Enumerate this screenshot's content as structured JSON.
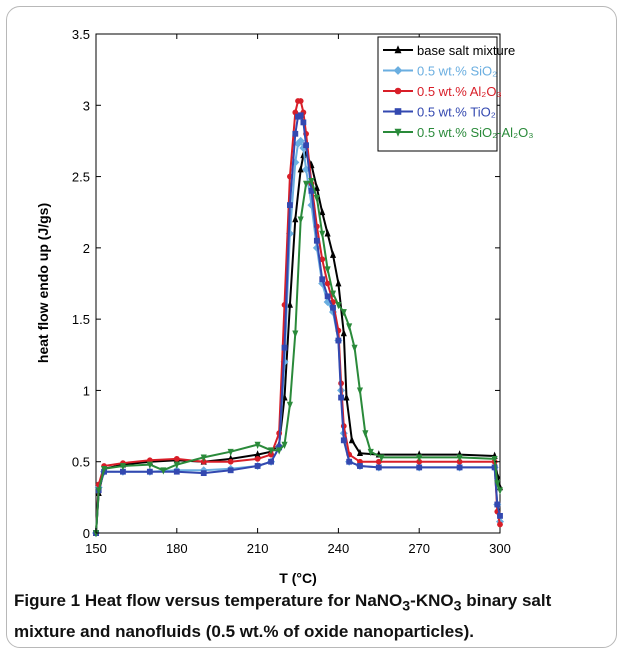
{
  "caption": {
    "label": "Figure 1",
    "text_a": " Heat flow versus temperature for NaNO",
    "sub1": "3",
    "text_b": "-KNO",
    "sub2": "3",
    "text_c": " binary salt mixture and nanofluids (0.5 wt.% of oxide nanoparticles)."
  },
  "chart_data": {
    "type": "line",
    "xlabel": "T (°C)",
    "ylabel": "heat flow endo up (J/gs)",
    "xlim": [
      150,
      300
    ],
    "ylim": [
      0,
      3.5
    ],
    "xticks": [
      150,
      180,
      210,
      240,
      270,
      300
    ],
    "yticks": [
      0,
      0.5,
      1,
      1.5,
      2,
      2.5,
      3,
      3.5
    ],
    "grid": false,
    "legend_position": "top-right",
    "series": [
      {
        "name": "base salt mixture",
        "color": "#000000",
        "marker": "triangle-up",
        "x": [
          150,
          151,
          153,
          160,
          170,
          180,
          190,
          200,
          210,
          215,
          218,
          220,
          222,
          224,
          226,
          227,
          228,
          230,
          232,
          234,
          236,
          238,
          240,
          242,
          243,
          245,
          248,
          255,
          270,
          285,
          298,
          299,
          300
        ],
        "y": [
          0,
          0.28,
          0.45,
          0.48,
          0.5,
          0.51,
          0.5,
          0.52,
          0.55,
          0.57,
          0.62,
          0.95,
          1.6,
          2.2,
          2.55,
          2.65,
          2.66,
          2.58,
          2.42,
          2.25,
          2.1,
          1.95,
          1.75,
          1.4,
          0.95,
          0.65,
          0.56,
          0.55,
          0.55,
          0.55,
          0.54,
          0.4,
          0.32
        ]
      },
      {
        "name": "0.5 wt.% SiO₂",
        "color": "#6aaee0",
        "marker": "diamond",
        "x": [
          150,
          151,
          153,
          160,
          170,
          180,
          190,
          200,
          210,
          215,
          218,
          220,
          222,
          224,
          225,
          226,
          227,
          228,
          230,
          232,
          234,
          236,
          238,
          240,
          241,
          242,
          244,
          248,
          255,
          270,
          285,
          298,
          299,
          300
        ],
        "y": [
          0,
          0.32,
          0.43,
          0.43,
          0.43,
          0.44,
          0.44,
          0.45,
          0.47,
          0.5,
          0.6,
          1.2,
          2.1,
          2.6,
          2.73,
          2.75,
          2.7,
          2.55,
          2.3,
          2.0,
          1.75,
          1.62,
          1.55,
          1.35,
          1.0,
          0.7,
          0.5,
          0.47,
          0.46,
          0.46,
          0.46,
          0.46,
          0.2,
          0.08
        ]
      },
      {
        "name": "0.5 wt.% Al₂O₃",
        "color": "#d81e28",
        "marker": "circle",
        "x": [
          150,
          151,
          153,
          160,
          170,
          180,
          190,
          200,
          210,
          215,
          218,
          220,
          222,
          224,
          225,
          226,
          227,
          228,
          230,
          232,
          234,
          236,
          238,
          240,
          241,
          242,
          244,
          248,
          255,
          270,
          285,
          298,
          299,
          300
        ],
        "y": [
          0,
          0.34,
          0.47,
          0.49,
          0.51,
          0.52,
          0.5,
          0.5,
          0.52,
          0.55,
          0.7,
          1.6,
          2.5,
          2.95,
          3.03,
          3.03,
          2.95,
          2.8,
          2.45,
          2.15,
          1.92,
          1.75,
          1.62,
          1.42,
          1.05,
          0.75,
          0.55,
          0.5,
          0.5,
          0.5,
          0.5,
          0.5,
          0.15,
          0.06
        ]
      },
      {
        "name": "0.5 wt.% TiO₂",
        "color": "#3348b0",
        "marker": "square",
        "x": [
          150,
          151,
          153,
          160,
          170,
          180,
          190,
          200,
          210,
          215,
          218,
          220,
          222,
          224,
          225,
          226,
          227,
          228,
          230,
          232,
          234,
          236,
          238,
          240,
          241,
          242,
          244,
          248,
          255,
          270,
          285,
          298,
          299,
          300
        ],
        "y": [
          0,
          0.3,
          0.43,
          0.43,
          0.43,
          0.43,
          0.42,
          0.44,
          0.47,
          0.5,
          0.6,
          1.3,
          2.3,
          2.8,
          2.92,
          2.93,
          2.88,
          2.72,
          2.4,
          2.05,
          1.78,
          1.66,
          1.58,
          1.35,
          0.95,
          0.65,
          0.5,
          0.47,
          0.46,
          0.46,
          0.46,
          0.46,
          0.2,
          0.12
        ]
      },
      {
        "name": "0.5 wt.% SiO₂-Al₂O₃",
        "color": "#2a8a3a",
        "marker": "triangle-down",
        "x": [
          150,
          151,
          153,
          160,
          170,
          175,
          180,
          190,
          200,
          210,
          215,
          218,
          220,
          222,
          224,
          226,
          228,
          230,
          232,
          234,
          236,
          238,
          240,
          242,
          244,
          246,
          248,
          250,
          252,
          256,
          270,
          285,
          298,
          299,
          300
        ],
        "y": [
          0,
          0.3,
          0.45,
          0.47,
          0.48,
          0.44,
          0.48,
          0.53,
          0.57,
          0.62,
          0.58,
          0.58,
          0.62,
          0.9,
          1.4,
          2.2,
          2.45,
          2.47,
          2.35,
          2.1,
          1.85,
          1.68,
          1.6,
          1.55,
          1.45,
          1.3,
          1.0,
          0.7,
          0.57,
          0.53,
          0.53,
          0.53,
          0.52,
          0.35,
          0.3
        ]
      }
    ]
  }
}
